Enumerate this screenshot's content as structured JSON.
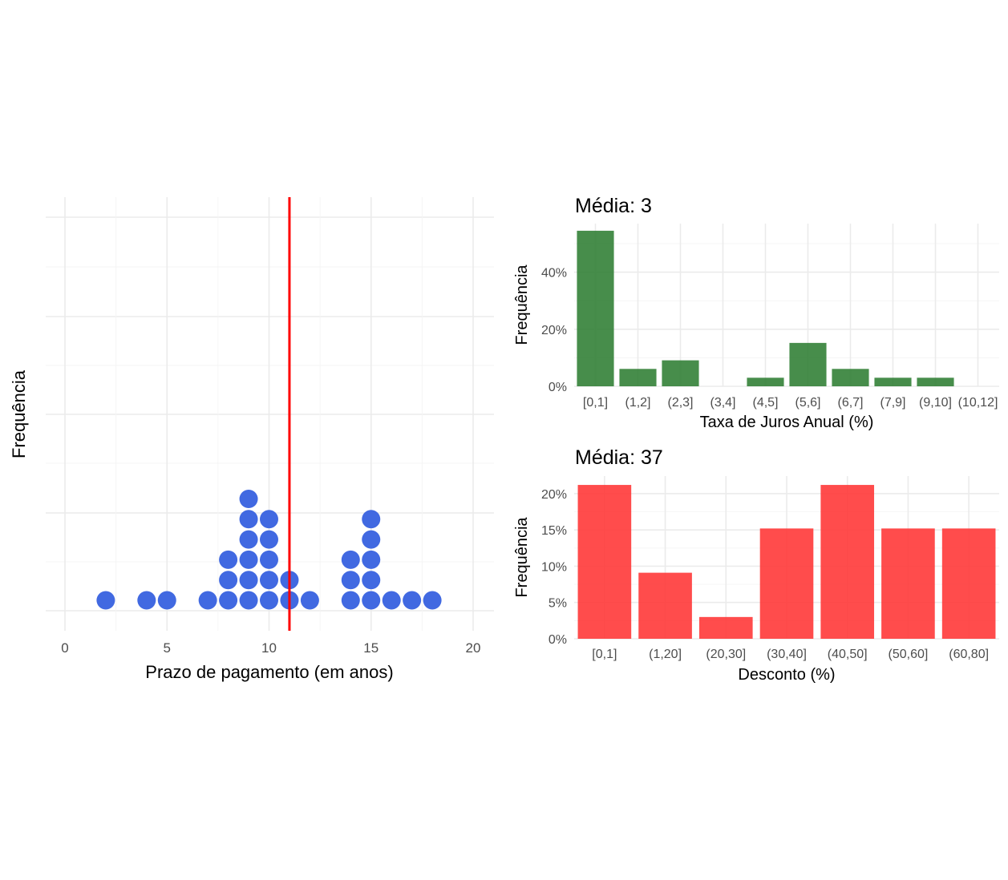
{
  "chart_data": [
    {
      "id": "dotplot",
      "type": "scatter",
      "subtype": "dotplot",
      "xlabel": "Prazo de pagamento (em anos)",
      "ylabel": "Frequência",
      "xlim": [
        0,
        20
      ],
      "x_ticks": [
        "0",
        "5",
        "10",
        "15",
        "20"
      ],
      "x_tick_values": [
        0,
        5,
        10,
        15,
        20
      ],
      "grid": true,
      "y_ticks_shown": false,
      "dot_color": "#4169E1",
      "mean_line": {
        "x": 11,
        "color": "#FF0000"
      },
      "stacks": [
        {
          "x": 2,
          "count": 1
        },
        {
          "x": 4,
          "count": 1
        },
        {
          "x": 5,
          "count": 1
        },
        {
          "x": 7,
          "count": 1
        },
        {
          "x": 8,
          "count": 3
        },
        {
          "x": 9,
          "count": 6
        },
        {
          "x": 10,
          "count": 5
        },
        {
          "x": 11,
          "count": 2
        },
        {
          "x": 12,
          "count": 1
        },
        {
          "x": 14,
          "count": 3
        },
        {
          "x": 15,
          "count": 5
        },
        {
          "x": 16,
          "count": 1
        },
        {
          "x": 17,
          "count": 1
        },
        {
          "x": 18,
          "count": 1
        }
      ]
    },
    {
      "id": "juros",
      "type": "bar",
      "title": "Média: 3",
      "xlabel": "Taxa de Juros Anual (%)",
      "ylabel": "Frequência",
      "categories": [
        "[0,1]",
        "(1,2]",
        "(2,3]",
        "(3,4]",
        "(4,5]",
        "(5,6]",
        "(6,7]",
        "(7,9]",
        "(9,10]",
        "(10,12]"
      ],
      "values": [
        54.5,
        6.1,
        9.1,
        0,
        3.0,
        15.2,
        6.1,
        3.0,
        3.0,
        0
      ],
      "unit": "%",
      "ylim": [
        0,
        57
      ],
      "y_ticks": [
        "0%",
        "20%",
        "40%"
      ],
      "y_tick_values": [
        0,
        20,
        40
      ],
      "color": "#2E7D32",
      "grid": true
    },
    {
      "id": "desconto",
      "type": "bar",
      "title": "Média: 37",
      "xlabel": "Desconto (%)",
      "ylabel": "Frequência",
      "categories": [
        "[0,1]",
        "(1,20]",
        "(20,30]",
        "(30,40]",
        "(40,50]",
        "(50,60]",
        "(60,80]"
      ],
      "values": [
        21.2,
        9.1,
        3.0,
        15.2,
        21.2,
        15.2,
        15.2
      ],
      "unit": "%",
      "ylim": [
        0,
        22.2
      ],
      "y_ticks": [
        "0%",
        "5%",
        "10%",
        "15%",
        "20%"
      ],
      "y_tick_values": [
        0,
        5,
        10,
        15,
        20
      ],
      "color": "#FF3333",
      "grid": true
    }
  ]
}
